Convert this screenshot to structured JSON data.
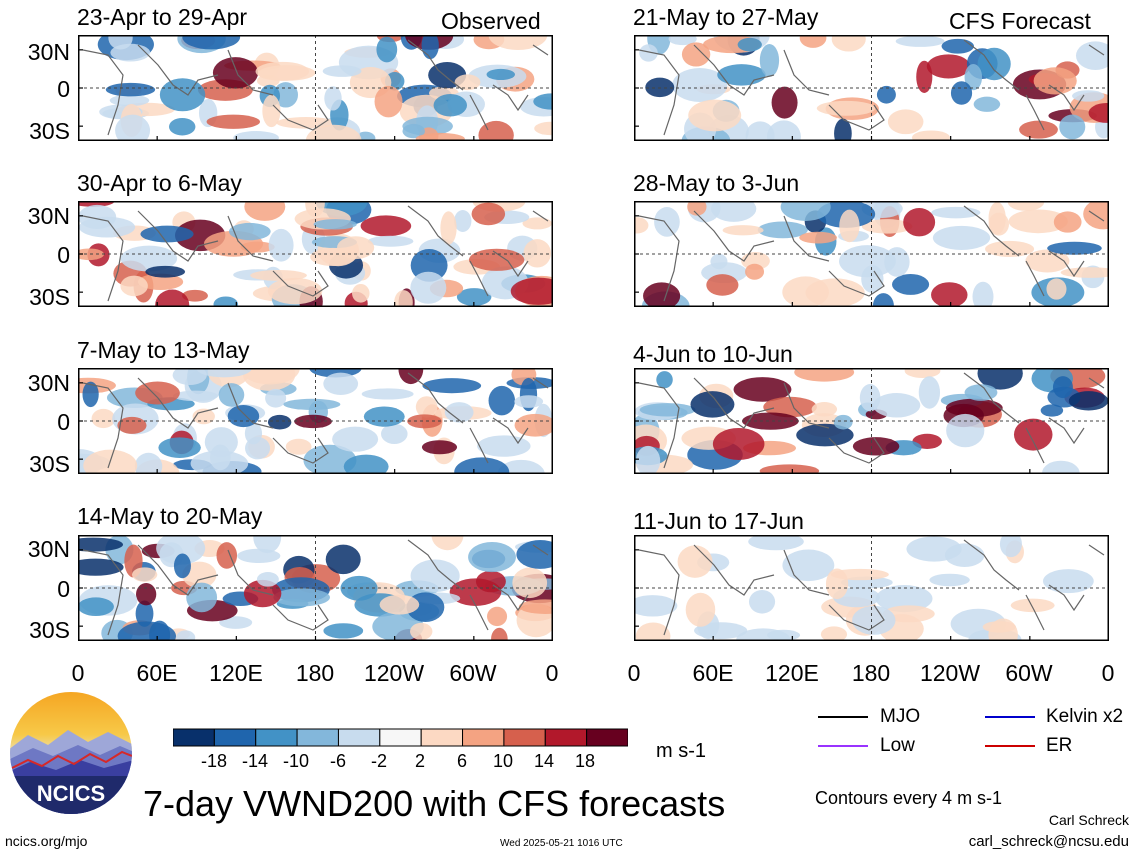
{
  "panels": [
    {
      "title": "23-Apr to 29-Apr",
      "note": "Observed"
    },
    {
      "title": "30-Apr to 6-May",
      "note": ""
    },
    {
      "title": "7-May to 13-May",
      "note": ""
    },
    {
      "title": "14-May to 20-May",
      "note": ""
    },
    {
      "title": "21-May to 27-May",
      "note": "CFS Forecast"
    },
    {
      "title": "28-May to 3-Jun",
      "note": ""
    },
    {
      "title": "4-Jun to 10-Jun",
      "note": ""
    },
    {
      "title": "11-Jun to 17-Jun",
      "note": ""
    }
  ],
  "y_ticks": [
    "30N",
    "0",
    "30S"
  ],
  "x_ticks": [
    "0",
    "60E",
    "120E",
    "180",
    "120W",
    "60W",
    "0"
  ],
  "colorbar": {
    "labels": [
      "-18",
      "-14",
      "-10",
      "-6",
      "-2",
      "2",
      "6",
      "10",
      "14",
      "18"
    ],
    "colors": [
      "#08306b",
      "#1f65ad",
      "#4292c6",
      "#83b7db",
      "#c8dcee",
      "#f7f7f7",
      "#fcd9c3",
      "#f4a382",
      "#d6604d",
      "#b2182b",
      "#67001f"
    ],
    "units": "m s-1"
  },
  "legend": [
    {
      "label": "MJO",
      "color": "#000000"
    },
    {
      "label": "Kelvin x2",
      "color": "#0000cc"
    },
    {
      "label": "Low",
      "color": "#9933ff"
    },
    {
      "label": "ER",
      "color": "#cc0000"
    }
  ],
  "contour_note": "Contours every 4 m s-1",
  "main_title": "7-day VWND200 with CFS forecasts",
  "logo_text": "NCICS",
  "footer": {
    "left": "ncics.org/mjo",
    "center": "Wed 2025-05-21 1016 UTC",
    "author": "Carl Schreck",
    "email": "carl_schreck@ncsu.edu"
  }
}
